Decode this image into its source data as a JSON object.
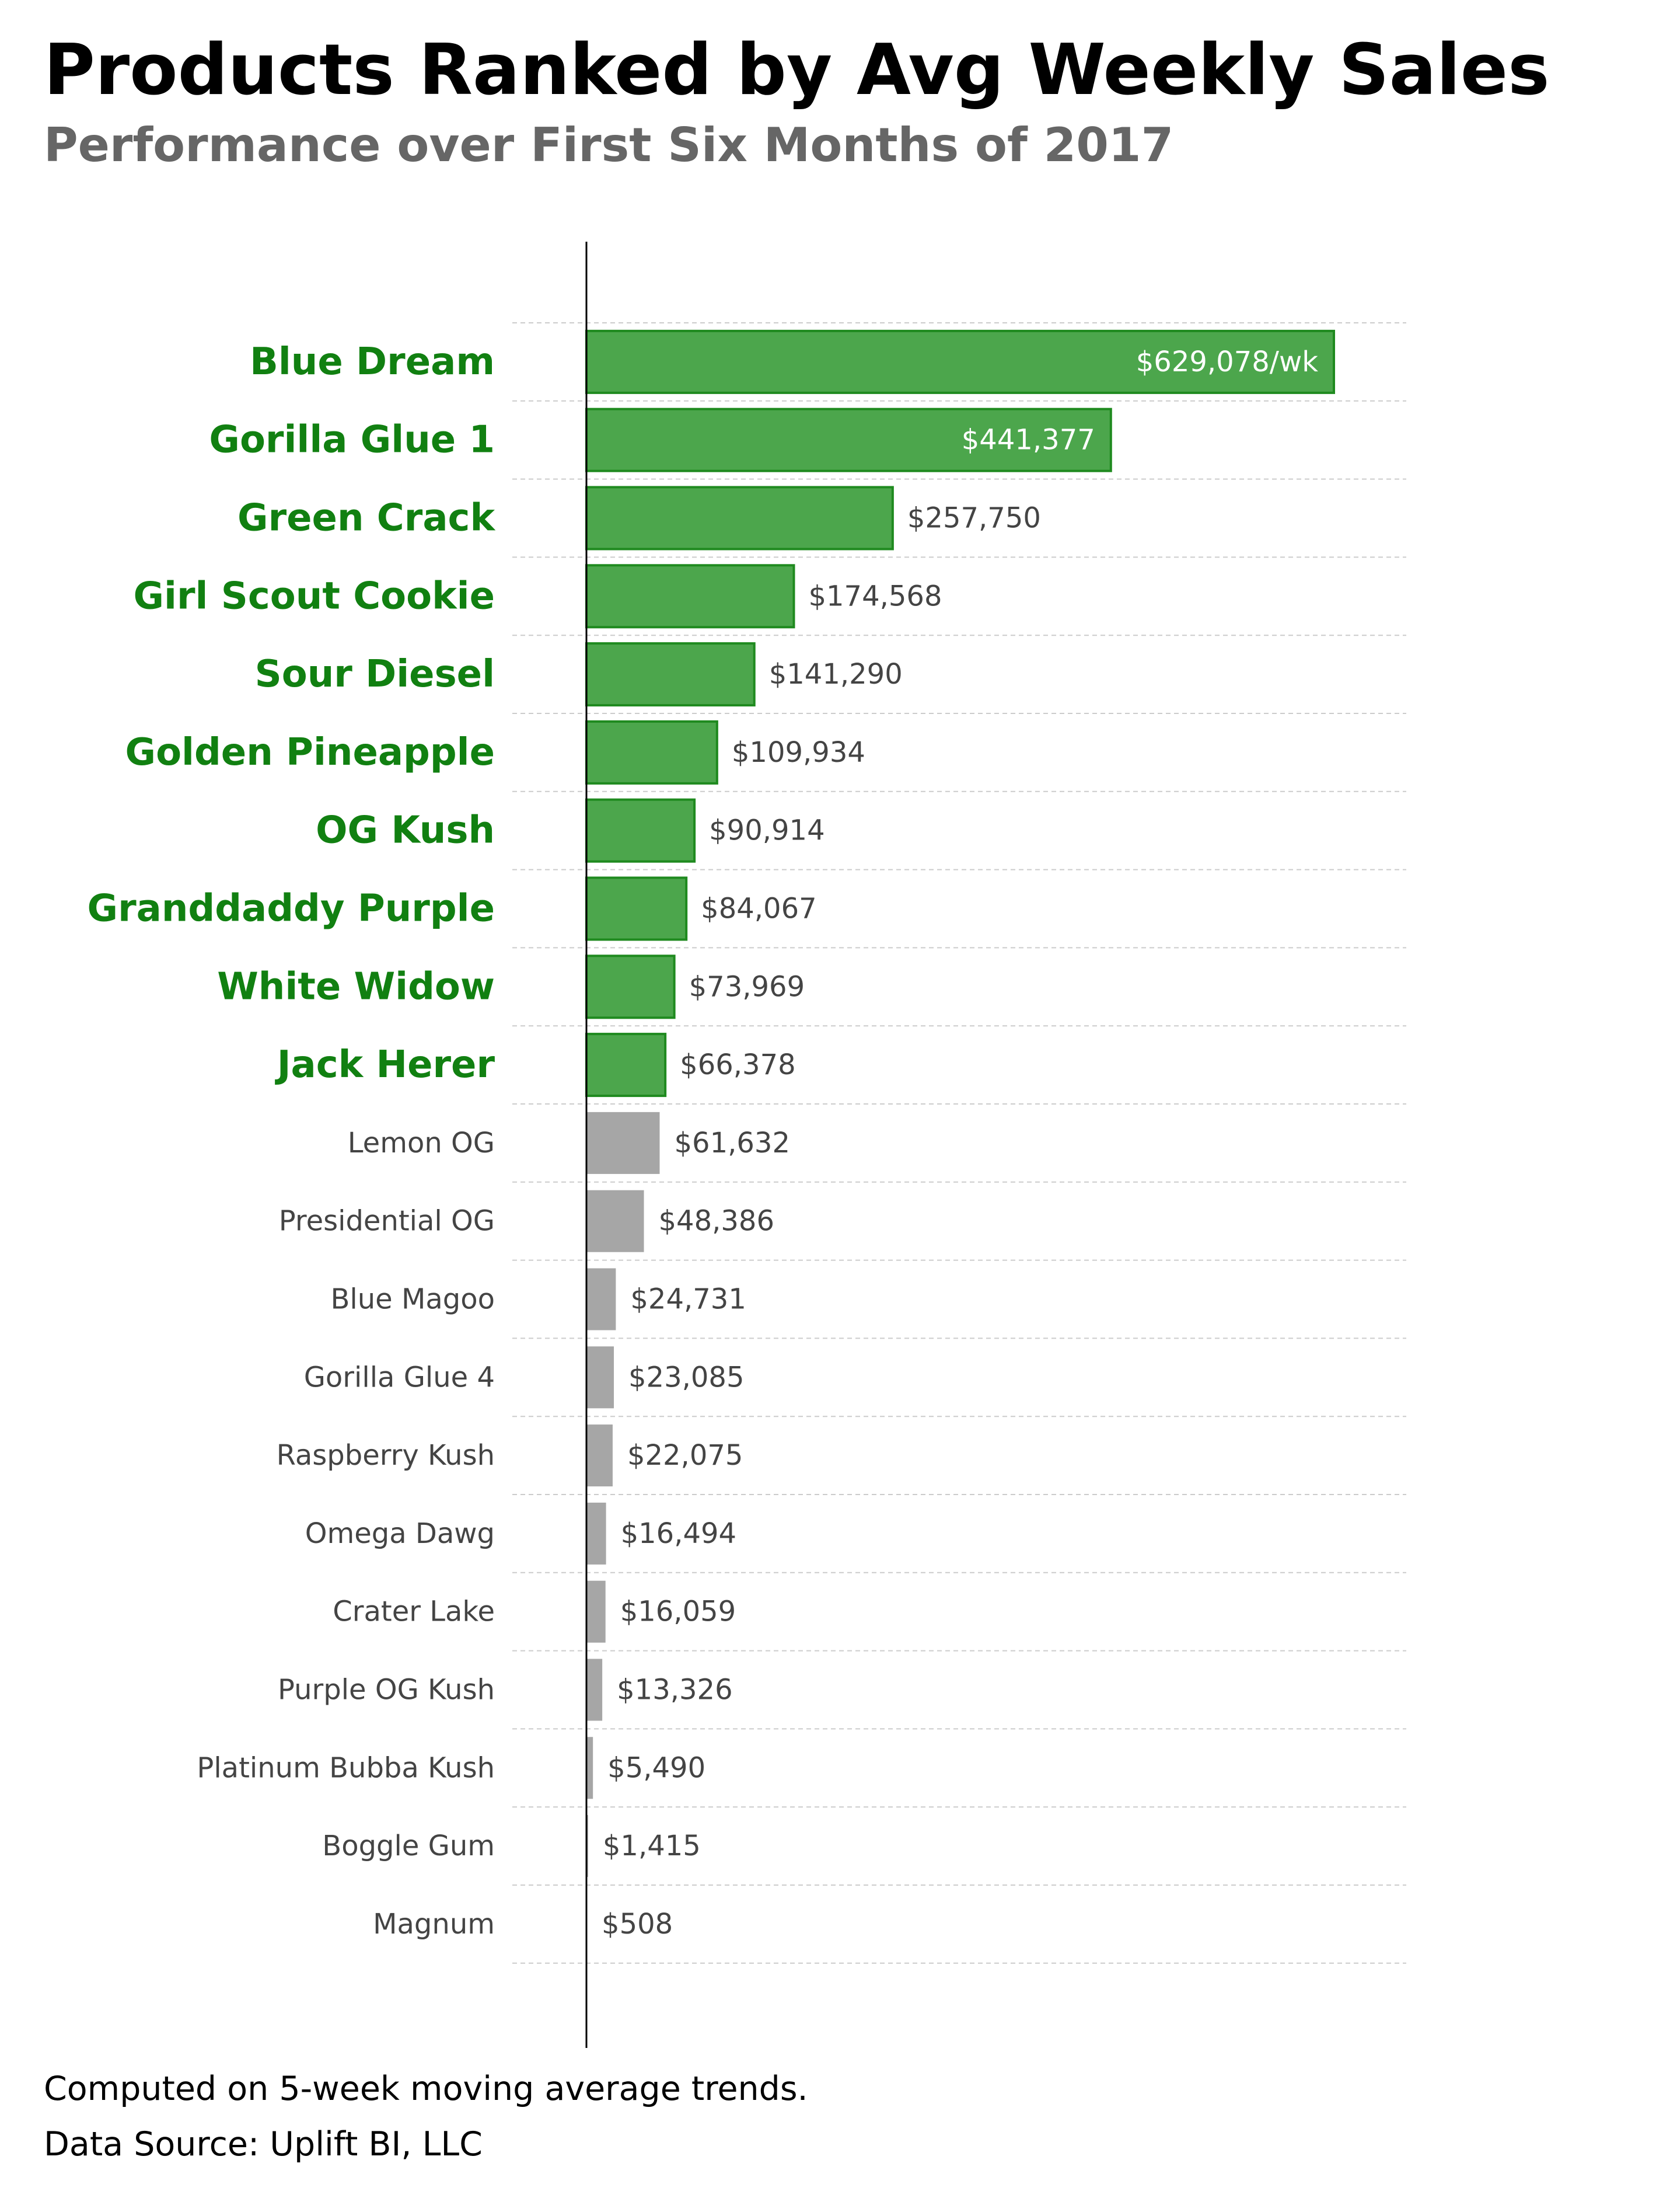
{
  "title": "Products Ranked by Avg Weekly Sales",
  "subtitle": "Performance over First Six Months of 2017",
  "footnotes": [
    "Computed on 5-week moving average trends.",
    "Data Source: Uplift BI, LLC"
  ],
  "colors": {
    "highlight_fill": "#4ca64c",
    "highlight_edge": "#1f8a1f",
    "highlight_text": "#118011",
    "other_fill": "#a6a6a6",
    "other_text": "#444444",
    "value_text": "#444444",
    "inside_value_text": "#ffffff",
    "grid": "#cccccc",
    "axis": "#000000"
  },
  "chart_data": {
    "type": "bar",
    "orientation": "horizontal",
    "title": "Products Ranked by Avg Weekly Sales",
    "subtitle": "Performance over First Six Months of 2017",
    "xlabel": "",
    "ylabel": "",
    "xlim": [
      0,
      690000
    ],
    "grid": "horizontal dashed",
    "highlight_top_n": 10,
    "categories": [
      "Blue Dream",
      "Gorilla Glue 1",
      "Green Crack",
      "Girl Scout Cookie",
      "Sour Diesel",
      "Golden Pineapple",
      "OG Kush",
      "Granddaddy Purple",
      "White Widow",
      "Jack Herer",
      "Lemon OG",
      "Presidential OG",
      "Blue Magoo",
      "Gorilla Glue 4",
      "Raspberry Kush",
      "Omega Dawg",
      "Crater Lake",
      "Purple OG Kush",
      "Platinum Bubba Kush",
      "Boggle Gum",
      "Magnum"
    ],
    "values": [
      629078,
      441377,
      257750,
      174568,
      141290,
      109934,
      90914,
      84067,
      73969,
      66378,
      61632,
      48386,
      24731,
      23085,
      22075,
      16494,
      16059,
      13326,
      5490,
      1415,
      508
    ],
    "value_labels": [
      "$629,078/wk",
      "$441,377",
      "$257,750",
      "$174,568",
      "$141,290",
      "$109,934",
      "$90,914",
      "$84,067",
      "$73,969",
      "$66,378",
      "$61,632",
      "$48,386",
      "$24,731",
      "$23,085",
      "$22,075",
      "$16,494",
      "$16,059",
      "$13,326",
      "$5,490",
      "$1,415",
      "$508"
    ]
  }
}
